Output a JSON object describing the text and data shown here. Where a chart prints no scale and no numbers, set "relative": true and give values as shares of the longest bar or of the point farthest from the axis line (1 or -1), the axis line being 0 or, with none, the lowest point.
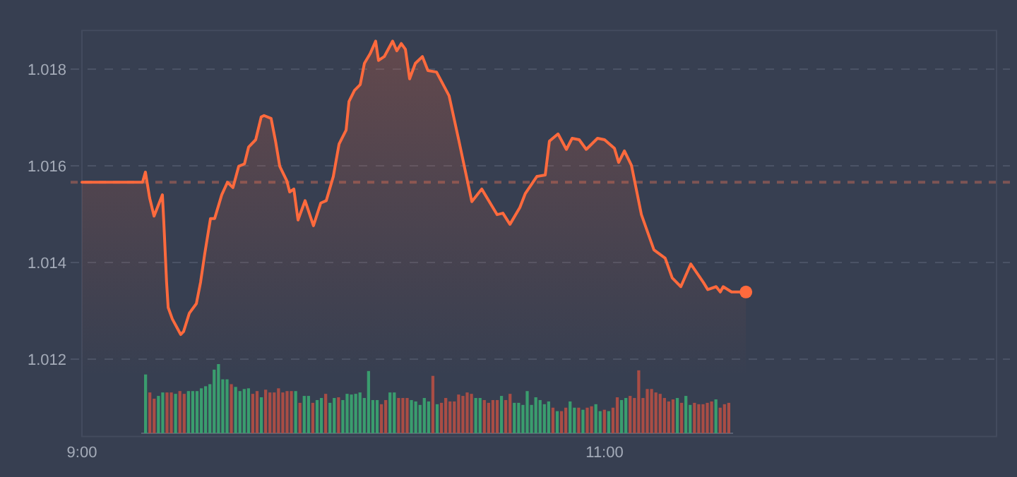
{
  "chart_data": [
    {
      "type": "area",
      "xlim": [
        9,
        12.5
      ],
      "ylim": [
        1.0104,
        1.0188
      ],
      "xticks": [
        {
          "value": 9,
          "label": "9:00"
        },
        {
          "value": 11,
          "label": "11:00"
        }
      ],
      "yticks": [
        1.012,
        1.014,
        1.016,
        1.018
      ],
      "grid": "y",
      "marker": "none",
      "line_style": "solid",
      "ref_lines": [
        {
          "axis": "y",
          "value": 1.01566,
          "color": "#7d5454",
          "line_style": "dashed"
        }
      ],
      "series": [
        {
          "type": "area",
          "color": "#ff6a3d",
          "x": [
            9.0,
            9.232,
            9.243,
            9.259,
            9.276,
            9.308,
            9.314,
            9.324,
            9.33,
            9.346,
            9.378,
            9.389,
            9.411,
            9.438,
            9.454,
            9.47,
            9.492,
            9.508,
            9.535,
            9.557,
            9.578,
            9.6,
            9.622,
            9.638,
            9.665,
            9.686,
            9.697,
            9.724,
            9.741,
            9.757,
            9.784,
            9.795,
            9.811,
            9.827,
            9.854,
            9.886,
            9.914,
            9.935,
            9.962,
            9.984,
            10.011,
            10.022,
            10.043,
            10.065,
            10.081,
            10.103,
            10.124,
            10.135,
            10.157,
            10.189,
            10.205,
            10.222,
            10.238,
            10.254,
            10.276,
            10.303,
            10.324,
            10.357,
            10.405,
            10.443,
            10.492,
            10.53,
            10.589,
            10.611,
            10.638,
            10.676,
            10.697,
            10.741,
            10.773,
            10.789,
            10.822,
            10.854,
            10.876,
            10.903,
            10.93,
            10.973,
            11.0,
            11.038,
            11.054,
            11.076,
            11.103,
            11.141,
            11.189,
            11.232,
            11.259,
            11.292,
            11.33,
            11.378,
            11.395,
            11.427,
            11.443,
            11.454,
            11.486,
            11.541
          ],
          "values": [
            1.01566,
            1.01566,
            1.01587,
            1.01534,
            1.01496,
            1.0154,
            1.01476,
            1.01359,
            1.01307,
            1.01283,
            1.01251,
            1.01257,
            1.01295,
            1.01315,
            1.01359,
            1.01418,
            1.01491,
            1.01491,
            1.0154,
            1.01566,
            1.01555,
            1.01599,
            1.01604,
            1.01639,
            1.01654,
            1.01701,
            1.01704,
            1.01698,
            1.01651,
            1.01599,
            1.01569,
            1.01546,
            1.01552,
            1.01488,
            1.01528,
            1.01476,
            1.01523,
            1.01528,
            1.01578,
            1.01645,
            1.01674,
            1.01733,
            1.01756,
            1.01768,
            1.01812,
            1.01832,
            1.01858,
            1.01818,
            1.01826,
            1.01858,
            1.01838,
            1.01853,
            1.01841,
            1.0178,
            1.01812,
            1.01826,
            1.01797,
            1.01794,
            1.01745,
            1.01651,
            1.01526,
            1.01552,
            1.01499,
            1.01502,
            1.01479,
            1.01514,
            1.01543,
            1.01578,
            1.01581,
            1.01651,
            1.01666,
            1.01634,
            1.01657,
            1.01654,
            1.01634,
            1.01657,
            1.01654,
            1.01636,
            1.01607,
            1.01631,
            1.01601,
            1.01499,
            1.01426,
            1.01409,
            1.01368,
            1.0135,
            1.01397,
            1.01359,
            1.01344,
            1.0135,
            1.01339,
            1.0135,
            1.01339,
            1.01339
          ]
        },
        {
          "type": "scatter",
          "color": "#ff6a3d",
          "marker": "circle",
          "x": [
            11.541
          ],
          "values": [
            1.01339
          ]
        }
      ]
    },
    {
      "type": "bar",
      "relative": true,
      "categories": [
        null,
        null,
        null,
        null,
        null,
        null,
        null,
        null,
        null,
        null,
        null,
        null,
        null,
        null,
        null,
        null,
        null,
        null,
        null,
        null,
        null,
        null,
        null,
        null,
        null,
        null,
        null,
        null,
        null,
        null,
        null,
        null,
        null,
        null,
        null,
        null,
        null,
        null,
        null,
        null,
        null,
        null,
        null,
        null,
        null,
        null,
        null,
        null,
        null,
        null,
        null,
        null,
        null,
        null,
        null,
        null,
        null,
        null,
        null,
        null,
        null,
        null,
        null,
        null,
        null,
        null,
        null,
        null,
        null,
        null,
        null,
        null,
        null,
        null,
        null,
        null,
        null,
        null,
        null,
        null,
        null,
        null,
        null,
        null,
        null,
        null,
        null,
        null,
        null,
        null,
        null,
        null,
        null,
        null,
        null,
        null,
        null,
        null,
        null,
        null,
        null,
        null,
        null,
        null,
        null,
        null,
        null,
        null,
        null,
        null,
        null,
        null,
        null,
        null,
        null,
        null,
        null,
        null,
        null,
        null,
        null,
        null,
        null,
        null,
        null,
        null,
        null,
        null,
        null,
        null,
        null,
        null,
        null,
        null,
        null,
        null,
        null
      ],
      "values": [
        0.85,
        0.59,
        0.5,
        0.54,
        0.59,
        0.59,
        0.59,
        0.57,
        0.61,
        0.57,
        0.61,
        0.61,
        0.61,
        0.65,
        0.68,
        0.71,
        0.92,
        1,
        0.78,
        0.78,
        0.71,
        0.67,
        0.61,
        0.64,
        0.65,
        0.57,
        0.61,
        0.52,
        0.63,
        0.59,
        0.59,
        0.65,
        0.59,
        0.61,
        0.61,
        0.61,
        0.44,
        0.54,
        0.54,
        0.44,
        0.48,
        0.51,
        0.57,
        0.44,
        0.51,
        0.52,
        0.48,
        0.57,
        0.56,
        0.57,
        0.59,
        0.51,
        0.9,
        0.48,
        0.48,
        0.42,
        0.48,
        0.59,
        0.59,
        0.51,
        0.51,
        0.51,
        0.48,
        0.46,
        0.41,
        0.51,
        0.46,
        0.83,
        0.42,
        0.44,
        0.51,
        0.46,
        0.46,
        0.56,
        0.54,
        0.59,
        0.57,
        0.51,
        0.51,
        0.48,
        0.44,
        0.48,
        0.48,
        0.54,
        0.48,
        0.57,
        0.44,
        0.44,
        0.41,
        0.61,
        0.41,
        0.52,
        0.48,
        0.42,
        0.46,
        0.37,
        0.32,
        0.32,
        0.37,
        0.46,
        0.37,
        0.37,
        0.34,
        0.37,
        0.39,
        0.42,
        0.32,
        0.34,
        0.32,
        0.37,
        0.52,
        0.48,
        0.51,
        0.54,
        0.51,
        0.91,
        0.51,
        0.64,
        0.64,
        0.59,
        0.57,
        0.51,
        0.46,
        0.49,
        0.51,
        0.44,
        0.54,
        0.41,
        0.44,
        0.42,
        0.42,
        0.44,
        0.46,
        0.49,
        0.37,
        0.42,
        0.44
      ],
      "colors": [
        "#3a9d6e",
        "#a94d45",
        "#a94d45",
        "#3a9d6e",
        "#3a9d6e",
        "#a94d45",
        "#a94d45",
        "#3a9d6e",
        "#a94d45",
        "#a94d45",
        "#3a9d6e",
        "#3a9d6e",
        "#3a9d6e",
        "#3a9d6e",
        "#3a9d6e",
        "#3a9d6e",
        "#3a9d6e",
        "#3a9d6e",
        "#3a9d6e",
        "#3a9d6e",
        "#a94d45",
        "#3a9d6e",
        "#3a9d6e",
        "#3a9d6e",
        "#3a9d6e",
        "#a94d45",
        "#a94d45",
        "#3a9d6e",
        "#a94d45",
        "#a94d45",
        "#a94d45",
        "#a94d45",
        "#a94d45",
        "#a94d45",
        "#a94d45",
        "#3a9d6e",
        "#a94d45",
        "#3a9d6e",
        "#3a9d6e",
        "#a94d45",
        "#3a9d6e",
        "#3a9d6e",
        "#a94d45",
        "#3a9d6e",
        "#3a9d6e",
        "#a94d45",
        "#3a9d6e",
        "#3a9d6e",
        "#3a9d6e",
        "#3a9d6e",
        "#3a9d6e",
        "#3a9d6e",
        "#3a9d6e",
        "#3a9d6e",
        "#3a9d6e",
        "#a94d45",
        "#a94d45",
        "#3a9d6e",
        "#3a9d6e",
        "#a94d45",
        "#a94d45",
        "#a94d45",
        "#3a9d6e",
        "#3a9d6e",
        "#3a9d6e",
        "#3a9d6e",
        "#3a9d6e",
        "#a94d45",
        "#3a9d6e",
        "#a94d45",
        "#a94d45",
        "#a94d45",
        "#a94d45",
        "#a94d45",
        "#a94d45",
        "#a94d45",
        "#a94d45",
        "#3a9d6e",
        "#3a9d6e",
        "#a94d45",
        "#a94d45",
        "#a94d45",
        "#a94d45",
        "#3a9d6e",
        "#a94d45",
        "#a94d45",
        "#3a9d6e",
        "#3a9d6e",
        "#3a9d6e",
        "#3a9d6e",
        "#3a9d6e",
        "#3a9d6e",
        "#3a9d6e",
        "#3a9d6e",
        "#3a9d6e",
        "#a94d45",
        "#3a9d6e",
        "#a94d45",
        "#a94d45",
        "#3a9d6e",
        "#3a9d6e",
        "#a94d45",
        "#3a9d6e",
        "#a94d45",
        "#a94d45",
        "#3a9d6e",
        "#3a9d6e",
        "#a94d45",
        "#3a9d6e",
        "#a94d45",
        "#a94d45",
        "#3a9d6e",
        "#3a9d6e",
        "#a94d45",
        "#a94d45",
        "#a94d45",
        "#a94d45",
        "#a94d45",
        "#a94d45",
        "#a94d45",
        "#a94d45",
        "#a94d45",
        "#a94d45",
        "#a94d45",
        "#3a9d6e",
        "#a94d45",
        "#3a9d6e",
        "#3a9d6e",
        "#a94d45",
        "#a94d45",
        "#a94d45",
        "#a94d45",
        "#a94d45",
        "#3a9d6e",
        "#a94d45",
        "#a94d45",
        "#a94d45"
      ]
    }
  ]
}
